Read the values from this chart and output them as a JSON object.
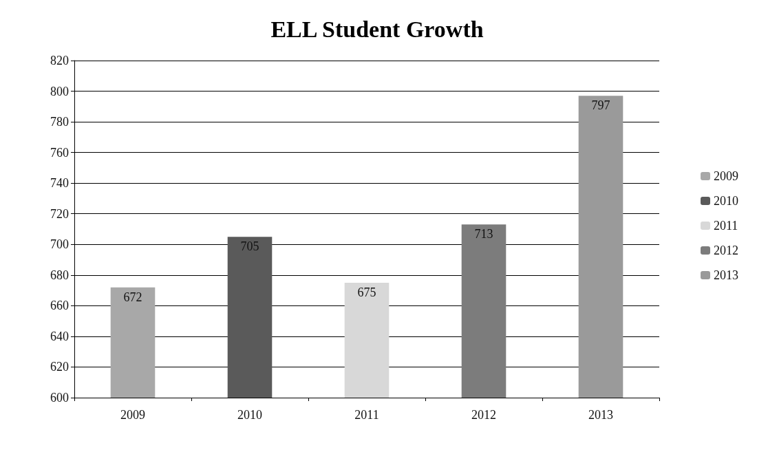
{
  "chart_data": {
    "type": "bar",
    "title": "ELL Student Growth",
    "categories": [
      "2009",
      "2010",
      "2011",
      "2012",
      "2013"
    ],
    "series": [
      {
        "name": "2009",
        "color": "#a8a8a8",
        "values": [
          672,
          null,
          null,
          null,
          null
        ]
      },
      {
        "name": "2010",
        "color": "#5a5a5a",
        "values": [
          null,
          705,
          null,
          null,
          null
        ]
      },
      {
        "name": "2011",
        "color": "#d8d8d8",
        "values": [
          null,
          null,
          675,
          null,
          null
        ]
      },
      {
        "name": "2012",
        "color": "#7c7c7c",
        "values": [
          null,
          null,
          null,
          713,
          null
        ]
      },
      {
        "name": "2013",
        "color": "#9a9a9a",
        "values": [
          null,
          null,
          null,
          null,
          797
        ]
      }
    ],
    "stacked": true,
    "ylim": [
      600,
      820
    ],
    "yticks": [
      600,
      620,
      640,
      660,
      680,
      700,
      720,
      740,
      760,
      780,
      800,
      820
    ],
    "grid": "y",
    "legend": "right",
    "data_labels": true
  }
}
